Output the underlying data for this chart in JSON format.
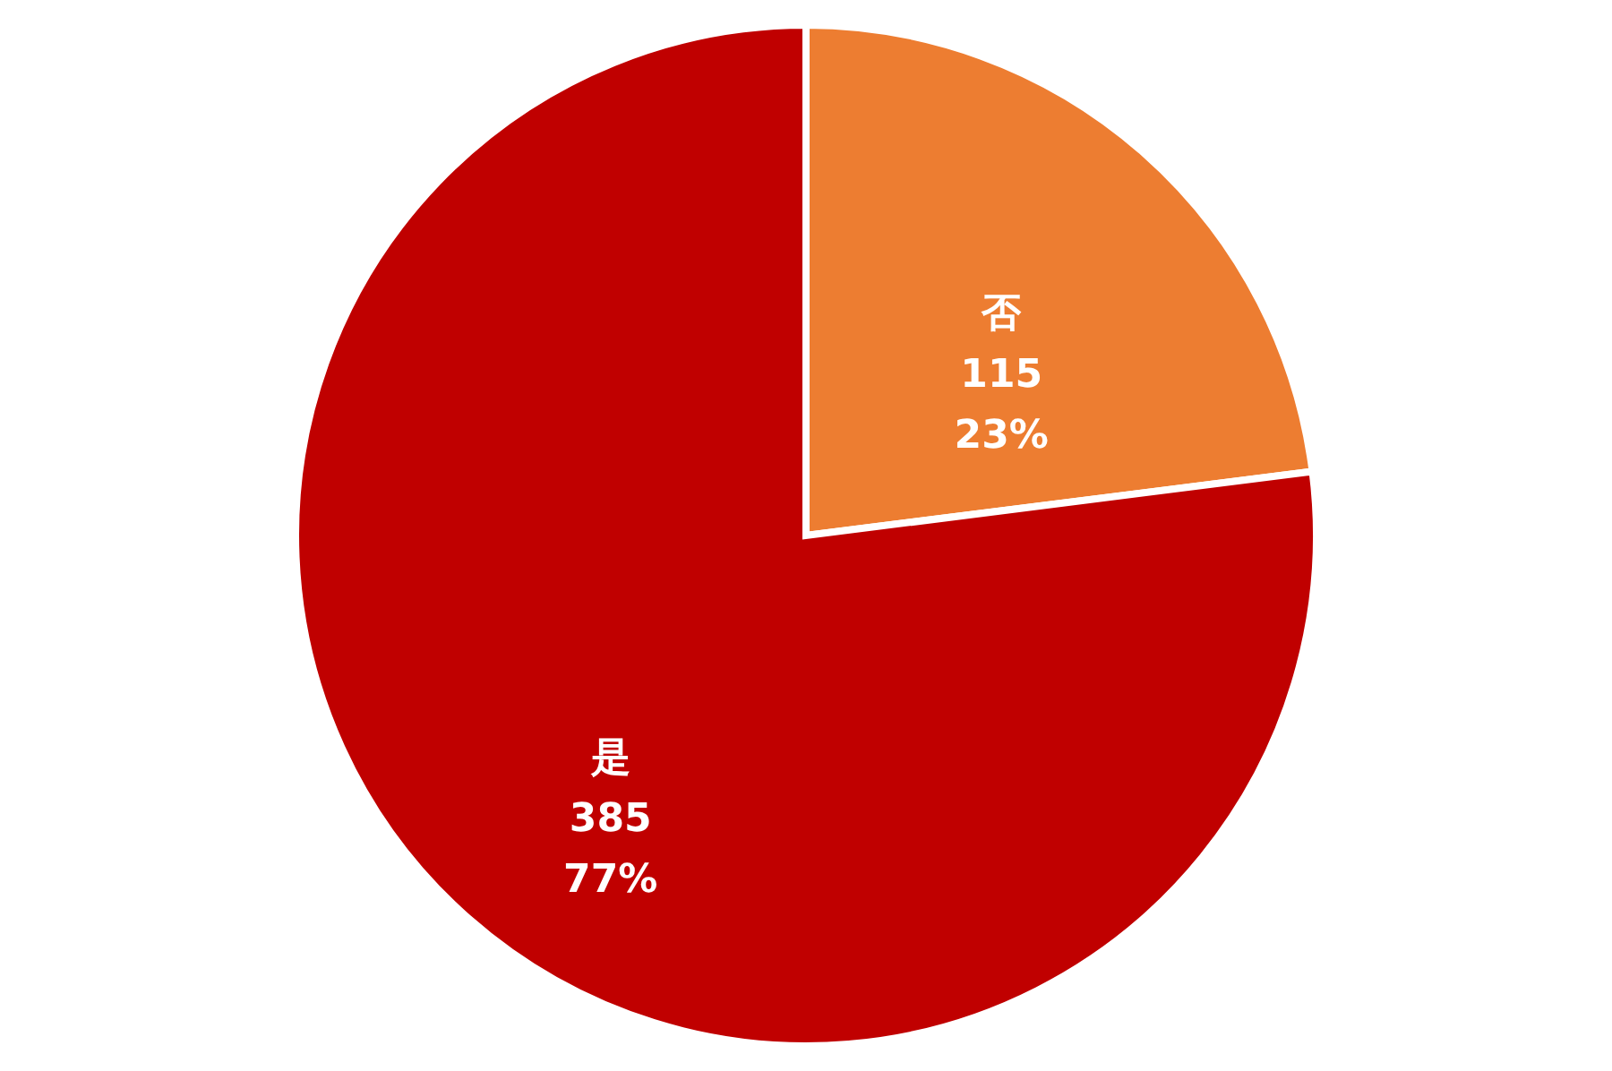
{
  "chart_data": {
    "type": "pie",
    "categories": [
      "否",
      "是"
    ],
    "values": [
      115,
      385
    ],
    "colors": [
      "#ed7d31",
      "#c00000"
    ],
    "value_labels": [
      "115\n23%",
      "385\n77%"
    ],
    "legend": false
  }
}
